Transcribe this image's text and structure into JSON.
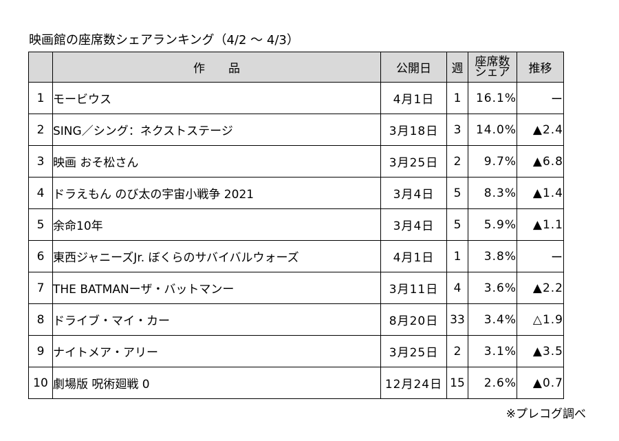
{
  "title": "映画館の座席数シェアランキング（4/2 ～ 4/3）",
  "headers": {
    "rank": "",
    "title": "作　　品",
    "release": "公開日",
    "week": "週",
    "share_line1": "座席数",
    "share_line2": "シェア",
    "trend": "推移"
  },
  "rows": [
    {
      "rank": "1",
      "title": "モービウス",
      "release": "4月1日",
      "week": "1",
      "share": "16.1%",
      "trend": "ー"
    },
    {
      "rank": "2",
      "title": "SING／シング：ネクストステージ",
      "release": "3月18日",
      "week": "3",
      "share": "14.0%",
      "trend": "▲2.4"
    },
    {
      "rank": "3",
      "title": "映画 おそ松さん",
      "release": "3月25日",
      "week": "2",
      "share": "9.7%",
      "trend": "▲6.8"
    },
    {
      "rank": "4",
      "title": "ドラえもん のび太の宇宙小戦争 2021",
      "release": "3月4日",
      "week": "5",
      "share": "8.3%",
      "trend": "▲1.4"
    },
    {
      "rank": "5",
      "title": "余命10年",
      "release": "3月4日",
      "week": "5",
      "share": "5.9%",
      "trend": "▲1.1"
    },
    {
      "rank": "6",
      "title": "東西ジャニーズJr. ぼくらのサバイバルウォーズ",
      "release": "4月1日",
      "week": "1",
      "share": "3.8%",
      "trend": "ー"
    },
    {
      "rank": "7",
      "title": "THE BATMANーザ・バットマンー",
      "release": "3月11日",
      "week": "4",
      "share": "3.6%",
      "trend": "▲2.2"
    },
    {
      "rank": "8",
      "title": "ドライブ・マイ・カー",
      "release": "8月20日",
      "week": "33",
      "share": "3.4%",
      "trend": "△1.9"
    },
    {
      "rank": "9",
      "title": "ナイトメア・アリー",
      "release": "3月25日",
      "week": "2",
      "share": "3.1%",
      "trend": "▲3.5"
    },
    {
      "rank": "10",
      "title": "劇場版 呪術廻戦 0",
      "release": "12月24日",
      "week": "15",
      "share": "2.6%",
      "trend": "▲0.7"
    }
  ],
  "footer": "※プレコグ調べ"
}
